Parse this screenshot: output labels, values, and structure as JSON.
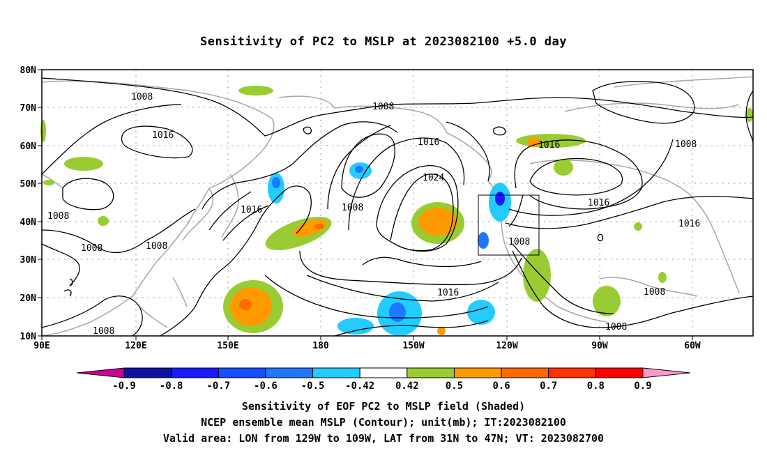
{
  "title": "Sensitivity of PC2 to MSLP at 2023082100 +5.0 day",
  "map": {
    "lat_labels": [
      "80N",
      "70N",
      "60N",
      "50N",
      "40N",
      "30N",
      "20N",
      "10N"
    ],
    "lon_labels": [
      "90E",
      "120E",
      "150E",
      "180",
      "150W",
      "120W",
      "90W",
      "60W"
    ],
    "contour_labels": [
      {
        "text": "1008",
        "id": "c1"
      },
      {
        "text": "1016",
        "id": "c2"
      },
      {
        "text": "1008",
        "id": "c3"
      },
      {
        "text": "1016",
        "id": "c4"
      },
      {
        "text": "1024",
        "id": "c5"
      },
      {
        "text": "1016",
        "id": "c6"
      },
      {
        "text": "1008",
        "id": "c7"
      },
      {
        "text": "1016",
        "id": "c8"
      },
      {
        "text": "1008",
        "id": "c9"
      },
      {
        "text": "1016",
        "id": "c10"
      },
      {
        "text": "1008",
        "id": "c11"
      },
      {
        "text": "1008",
        "id": "c12"
      },
      {
        "text": "1008",
        "id": "c13"
      },
      {
        "text": "1016",
        "id": "c14"
      },
      {
        "text": "1008",
        "id": "c15"
      },
      {
        "text": "1016",
        "id": "c16"
      },
      {
        "text": "1008",
        "id": "c17"
      },
      {
        "text": "1008",
        "id": "c18"
      },
      {
        "text": "1016",
        "id": "c19"
      },
      {
        "text": "1008",
        "id": "c20"
      }
    ],
    "valid_area_box": {
      "lon_from": "129W",
      "lon_to": "109W",
      "lat_from": "31N",
      "lat_to": "47N"
    }
  },
  "colorbar": {
    "colors": [
      "#cc0099",
      "#1010a0",
      "#1a1aff",
      "#1450ff",
      "#1e78ff",
      "#22ccff",
      "#ffffff",
      "#99cc33",
      "#ff9900",
      "#ff6a00",
      "#ff3300",
      "#ff0000",
      "#ff99cc"
    ],
    "labels": [
      "-0.9",
      "-0.8",
      "-0.7",
      "-0.6",
      "-0.5",
      "-0.42",
      "0.42",
      "0.5",
      "0.6",
      "0.7",
      "0.8",
      "0.9"
    ]
  },
  "captions": {
    "line1": "Sensitivity of EOF PC2 to MSLP field (Shaded)",
    "line2": "NCEP ensemble mean MSLP (Contour); unit(mb); IT:2023082100",
    "line3": "Valid area: LON from 129W to 109W, LAT from 31N to 47N; VT: 2023082700"
  }
}
